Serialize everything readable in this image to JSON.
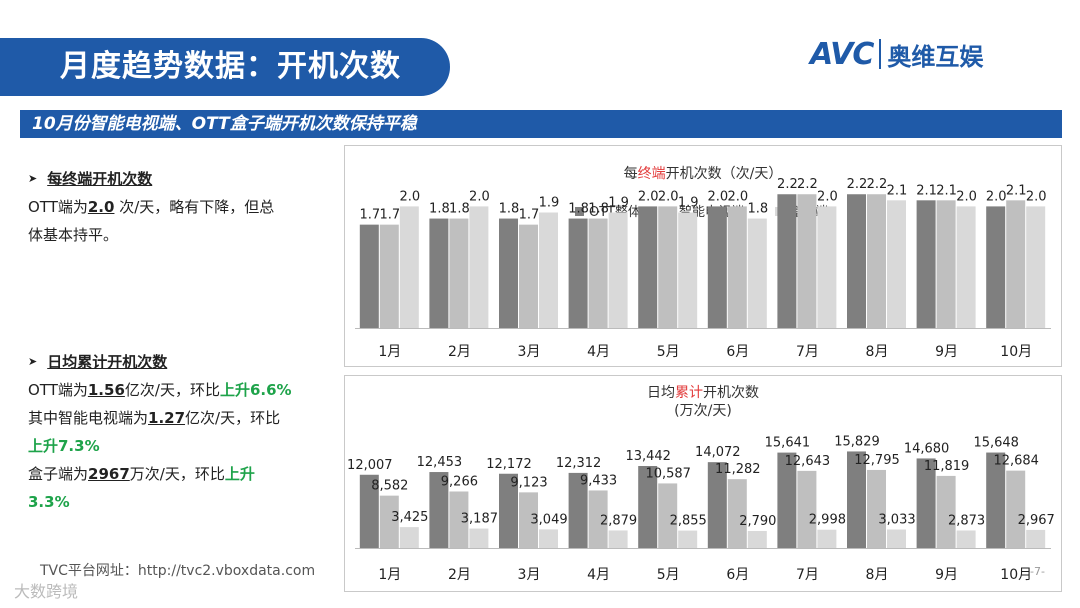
{
  "header": {
    "title": "月度趋势数据：开机次数",
    "subtitle": "10月份智能电视端、OTT盒子端开机次数保持平稳",
    "logo_text": "AVC",
    "logo_cn": "奥维互娱"
  },
  "section1": {
    "heading": "每终端开机次数",
    "line1_pre": "OTT端为",
    "line1_val": "2.0",
    "line1_post": " 次/天，略有下降，但总",
    "line2": "体基本持平。"
  },
  "section2": {
    "heading": "日均累计开机次数",
    "l1_pre": "OTT端为",
    "l1_val": "1.56",
    "l1_mid": "亿次/天，环比",
    "l1_up": "上升6.6%",
    "l2_pre": "其中智能电视端为",
    "l2_val": "1.27",
    "l2_mid": "亿次/天，环比",
    "l3_up": "上升7.3%",
    "l4_pre": "盒子端为",
    "l4_val": "2967",
    "l4_mid": "万次/天，环比",
    "l4_up": "上升",
    "l5_up": "3.3%"
  },
  "footer": {
    "url": "TVC平台网址：http://tvc2.vboxdata.com",
    "brand": "大数跨境",
    "page": "-7-"
  },
  "colors": {
    "brand_blue": "#1f5aa8",
    "up_green": "#1ea34a",
    "highlight_red": "#e23b3b",
    "series": [
      "#7f7f7f",
      "#bfbfbf",
      "#d9d9d9"
    ]
  },
  "chart_data": [
    {
      "type": "bar",
      "title_pre": "每",
      "title_hl": "终端",
      "title_post": "开机次数（次/天）",
      "legend": [
        "OTT整体",
        "智能电视端",
        "盒子端"
      ],
      "categories": [
        "1月",
        "2月",
        "3月",
        "4月",
        "5月",
        "6月",
        "7月",
        "8月",
        "9月",
        "10月"
      ],
      "series": [
        {
          "name": "OTT整体",
          "values": [
            1.7,
            1.8,
            1.8,
            1.8,
            2.0,
            2.0,
            2.2,
            2.2,
            2.1,
            2.0
          ]
        },
        {
          "name": "智能电视端",
          "values": [
            1.7,
            1.8,
            1.7,
            1.8,
            2.0,
            2.0,
            2.2,
            2.2,
            2.1,
            2.1
          ]
        },
        {
          "name": "盒子端",
          "values": [
            2.0,
            2.0,
            1.9,
            1.9,
            1.9,
            1.8,
            2.0,
            2.1,
            2.0,
            2.0
          ]
        }
      ],
      "ylim": [
        0,
        2.5
      ]
    },
    {
      "type": "bar",
      "title_pre": "日均",
      "title_hl": "累计",
      "title_post": "开机次数",
      "title_line2": "(万次/天)",
      "categories": [
        "1月",
        "2月",
        "3月",
        "4月",
        "5月",
        "6月",
        "7月",
        "8月",
        "9月",
        "10月"
      ],
      "series": [
        {
          "name": "OTT整体",
          "values": [
            12007,
            12453,
            12172,
            12312,
            13442,
            14072,
            15641,
            15829,
            14680,
            15648
          ],
          "labels": [
            "12,007",
            "12,453",
            "12,172",
            "12,312",
            "13,442",
            "14,072",
            "15,641",
            "15,829",
            "14,680",
            "15,648"
          ]
        },
        {
          "name": "智能电视端",
          "values": [
            8582,
            9266,
            9123,
            9433,
            10587,
            11282,
            12643,
            12795,
            11819,
            12684
          ],
          "labels": [
            "8,582",
            "9,266",
            "9,123",
            "9,433",
            "10,587",
            "11,282",
            "12,643",
            "12,795",
            "11,819",
            "12,684"
          ]
        },
        {
          "name": "盒子端",
          "values": [
            3425,
            3187,
            3049,
            2879,
            2855,
            2790,
            2998,
            3033,
            2873,
            2967
          ],
          "labels": [
            "3,425",
            "3,187",
            "3,049",
            "2,879",
            "2,855",
            "2,790",
            "2,998",
            "3,033",
            "2,873",
            "2,967"
          ]
        }
      ],
      "ylim": [
        0,
        20000
      ]
    }
  ]
}
